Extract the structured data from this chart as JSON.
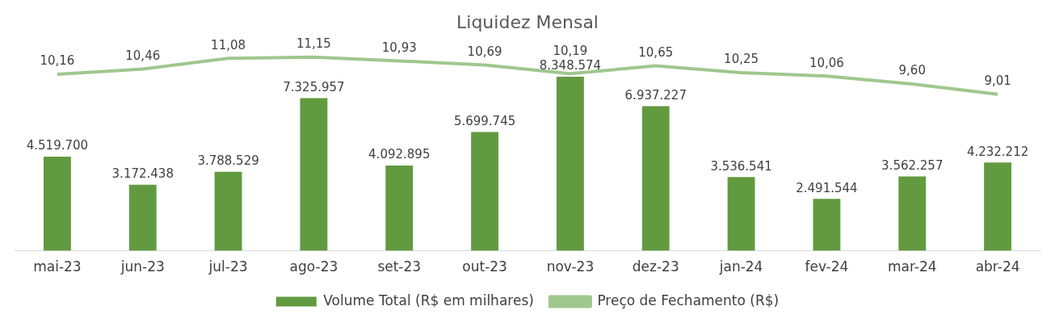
{
  "chart_data": {
    "type": "bar",
    "title": "Liquidez Mensal",
    "categories": [
      "mai-23",
      "jun-23",
      "jul-23",
      "ago-23",
      "set-23",
      "out-23",
      "nov-23",
      "dez-23",
      "jan-24",
      "fev-24",
      "mar-24",
      "abr-24"
    ],
    "series": [
      {
        "name": "Volume Total (R$ em milhares)",
        "color": "#629a3f",
        "values": [
          4519700,
          3172438,
          3788529,
          7325957,
          4092895,
          5699745,
          8348574,
          6937227,
          3536541,
          2491544,
          3562257,
          4232212
        ],
        "value_labels": [
          "4.519.700",
          "3.172.438",
          "3.788.529",
          "7.325.957",
          "4.092.895",
          "5.699.745",
          "8.348.574",
          "6.937.227",
          "3.536.541",
          "2.491.544",
          "3.562.257",
          "4.232.212"
        ]
      },
      {
        "name": "Preço de Fechamento (R$)",
        "type": "line",
        "axis": "y2",
        "color": "#9fc78e",
        "marker": "none",
        "values": [
          10.16,
          10.46,
          11.08,
          11.15,
          10.93,
          10.69,
          10.19,
          10.65,
          10.25,
          10.06,
          9.6,
          9.01
        ],
        "value_labels": [
          "10,16",
          "10,46",
          "11,08",
          "11,15",
          "10,93",
          "10,69",
          "10,19",
          "10,65",
          "10,25",
          "10,06",
          "9,60",
          "9,01"
        ]
      }
    ],
    "tick_labels": "x",
    "grid": false,
    "legend": "bottom"
  }
}
